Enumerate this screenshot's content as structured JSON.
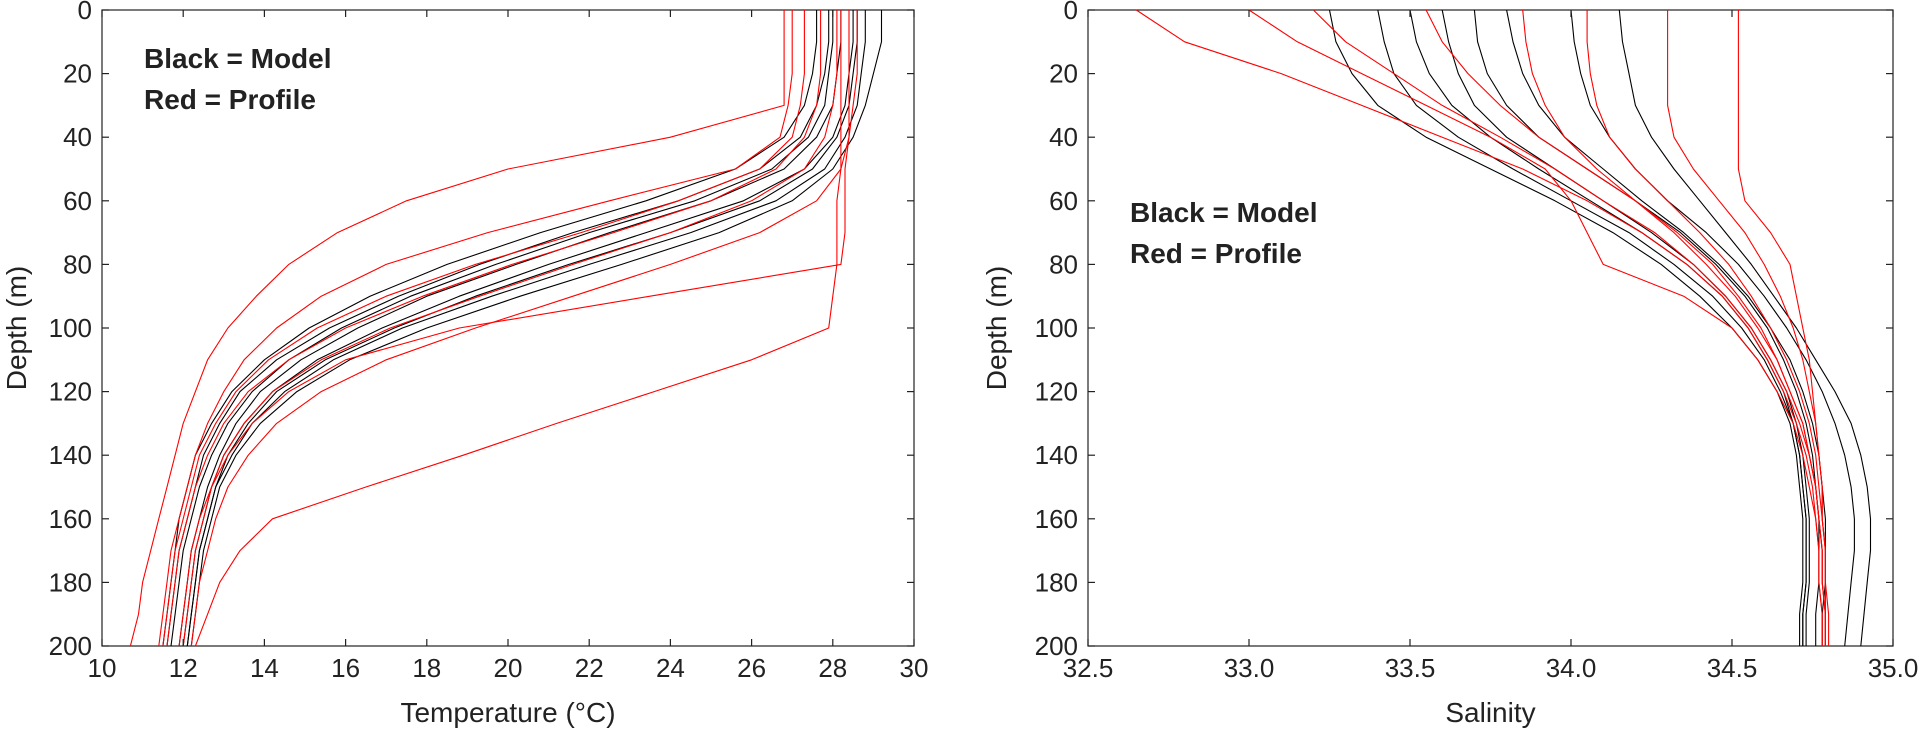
{
  "chart_data": [
    {
      "type": "line",
      "xlabel": "Temperature (°C)",
      "ylabel": "Depth (m)",
      "xlim": [
        10,
        30
      ],
      "ylim": [
        0,
        200
      ],
      "y_reversed": true,
      "xticks": [
        10,
        12,
        14,
        16,
        18,
        20,
        22,
        24,
        26,
        28,
        30
      ],
      "xtick_labels": [
        "10",
        "12",
        "14",
        "16",
        "18",
        "20",
        "22",
        "24",
        "26",
        "28",
        "30"
      ],
      "yticks": [
        0,
        20,
        40,
        60,
        80,
        100,
        120,
        140,
        160,
        180,
        200
      ],
      "ytick_labels": [
        "0",
        "20",
        "40",
        "60",
        "80",
        "100",
        "120",
        "140",
        "160",
        "180",
        "200"
      ],
      "annotations": [
        "Black = Model",
        "Red = Profile"
      ],
      "depth": [
        0,
        10,
        20,
        30,
        40,
        50,
        60,
        70,
        80,
        90,
        100,
        110,
        120,
        130,
        140,
        150,
        160,
        170,
        180,
        190,
        200
      ],
      "series": [
        {
          "color": "#000000",
          "values": [
            28.2,
            28.2,
            28.1,
            28.0,
            27.6,
            26.8,
            25.0,
            22.5,
            20.2,
            18.0,
            16.3,
            14.9,
            13.9,
            13.3,
            12.9,
            12.6,
            12.4,
            12.2,
            12.1,
            12.0,
            11.9
          ]
        },
        {
          "color": "#000000",
          "values": [
            28.5,
            28.5,
            28.4,
            28.3,
            28.0,
            27.3,
            25.8,
            23.4,
            21.0,
            18.8,
            16.9,
            15.3,
            14.2,
            13.5,
            13.0,
            12.7,
            12.5,
            12.3,
            12.2,
            12.1,
            12.0
          ]
        },
        {
          "color": "#000000",
          "values": [
            27.9,
            27.9,
            27.8,
            27.6,
            27.2,
            26.2,
            24.2,
            21.6,
            19.3,
            17.3,
            15.6,
            14.3,
            13.4,
            12.9,
            12.5,
            12.3,
            12.1,
            11.9,
            11.8,
            11.7,
            11.6
          ]
        },
        {
          "color": "#000000",
          "values": [
            28.8,
            28.8,
            28.7,
            28.6,
            28.3,
            27.8,
            26.6,
            24.5,
            22.0,
            19.6,
            17.4,
            15.7,
            14.5,
            13.7,
            13.2,
            12.8,
            12.6,
            12.4,
            12.3,
            12.2,
            12.1
          ]
        },
        {
          "color": "#000000",
          "values": [
            27.6,
            27.6,
            27.5,
            27.3,
            26.8,
            25.6,
            23.4,
            20.8,
            18.5,
            16.6,
            15.1,
            14.0,
            13.2,
            12.7,
            12.3,
            12.1,
            11.9,
            11.8,
            11.7,
            11.6,
            11.5
          ]
        },
        {
          "color": "#000000",
          "values": [
            29.2,
            29.2,
            29.0,
            28.8,
            28.5,
            28.0,
            27.0,
            25.2,
            22.8,
            20.3,
            18.0,
            16.1,
            14.8,
            13.9,
            13.3,
            12.9,
            12.7,
            12.5,
            12.4,
            12.3,
            12.2
          ]
        },
        {
          "color": "#000000",
          "values": [
            28.0,
            28.0,
            27.9,
            27.8,
            27.4,
            26.5,
            24.6,
            22.0,
            19.7,
            17.6,
            15.9,
            14.6,
            13.7,
            13.1,
            12.7,
            12.4,
            12.2,
            12.0,
            11.9,
            11.8,
            11.7
          ]
        },
        {
          "color": "#000000",
          "values": [
            28.6,
            28.6,
            28.5,
            28.4,
            28.1,
            27.5,
            26.2,
            24.0,
            21.5,
            19.2,
            17.2,
            15.5,
            14.3,
            13.6,
            13.1,
            12.8,
            12.6,
            12.4,
            12.3,
            12.2,
            12.1
          ]
        },
        {
          "color": "#FF0000",
          "values": [
            27.0,
            27.0,
            27.0,
            26.9,
            26.7,
            25.6,
            22.5,
            19.5,
            17.0,
            15.4,
            14.3,
            13.5,
            13.0,
            12.6,
            12.3,
            12.1,
            11.9,
            11.7,
            11.6,
            11.5,
            11.4
          ]
        },
        {
          "color": "#FF0000",
          "values": [
            28.4,
            28.4,
            28.4,
            28.4,
            28.4,
            28.3,
            28.3,
            28.3,
            28.2,
            23.5,
            18.8,
            16.0,
            14.6,
            13.7,
            13.1,
            12.7,
            12.4,
            12.2,
            12.1,
            12.0,
            11.9
          ]
        },
        {
          "color": "#FF0000",
          "values": [
            27.3,
            27.3,
            27.3,
            27.2,
            27.0,
            26.2,
            24.2,
            21.8,
            19.2,
            17.0,
            15.3,
            14.1,
            13.3,
            12.8,
            12.4,
            12.2,
            12.0,
            11.8,
            11.7,
            11.6,
            11.5
          ]
        },
        {
          "color": "#FF0000",
          "values": [
            28.1,
            28.1,
            28.1,
            28.0,
            27.8,
            27.3,
            26.0,
            24.0,
            21.6,
            19.3,
            17.1,
            15.4,
            14.2,
            13.5,
            13.0,
            12.7,
            12.5,
            12.3,
            12.2,
            12.1,
            12.0
          ]
        },
        {
          "color": "#FF0000",
          "values": [
            26.8,
            26.8,
            26.8,
            26.8,
            24.0,
            20.0,
            17.5,
            15.8,
            14.6,
            13.8,
            13.1,
            12.6,
            12.3,
            12.0,
            11.8,
            11.6,
            11.4,
            11.2,
            11.0,
            10.9,
            10.7
          ]
        },
        {
          "color": "#FF0000",
          "values": [
            28.6,
            28.6,
            28.6,
            28.5,
            28.4,
            28.2,
            27.6,
            26.2,
            24.0,
            21.6,
            19.2,
            17.0,
            15.4,
            14.3,
            13.6,
            13.1,
            12.8,
            12.6,
            12.4,
            12.3,
            12.2
          ]
        },
        {
          "color": "#FF0000",
          "values": [
            28.2,
            28.2,
            28.2,
            28.2,
            28.2,
            28.2,
            28.1,
            28.1,
            28.1,
            28.0,
            27.9,
            26.0,
            23.6,
            21.2,
            18.9,
            16.5,
            14.2,
            13.4,
            12.9,
            12.6,
            12.3
          ]
        },
        {
          "color": "#FF0000",
          "values": [
            27.7,
            27.7,
            27.7,
            27.6,
            27.3,
            26.6,
            25.0,
            22.6,
            20.1,
            17.9,
            16.0,
            14.6,
            13.6,
            13.0,
            12.6,
            12.3,
            12.1,
            11.9,
            11.8,
            11.7,
            11.6
          ]
        }
      ]
    },
    {
      "type": "line",
      "xlabel": "Salinity",
      "ylabel": "Depth (m)",
      "xlim": [
        32.5,
        35.0
      ],
      "ylim": [
        0,
        200
      ],
      "y_reversed": true,
      "xticks": [
        32.5,
        33.0,
        33.5,
        34.0,
        34.5,
        35.0
      ],
      "xtick_labels": [
        "32.5",
        "33.0",
        "33.5",
        "34.0",
        "34.5",
        "35.0"
      ],
      "yticks": [
        0,
        20,
        40,
        60,
        80,
        100,
        120,
        140,
        160,
        180,
        200
      ],
      "ytick_labels": [
        "0",
        "20",
        "40",
        "60",
        "80",
        "100",
        "120",
        "140",
        "160",
        "180",
        "200"
      ],
      "annotations": [
        "Black = Model",
        "Red = Profile"
      ],
      "depth": [
        0,
        10,
        20,
        30,
        40,
        50,
        60,
        70,
        80,
        90,
        100,
        110,
        120,
        130,
        140,
        150,
        160,
        170,
        180,
        190,
        200
      ],
      "series": [
        {
          "color": "#000000",
          "values": [
            33.6,
            33.62,
            33.65,
            33.7,
            33.8,
            33.95,
            34.1,
            34.25,
            34.38,
            34.48,
            34.56,
            34.62,
            34.67,
            34.7,
            34.72,
            34.73,
            34.74,
            34.74,
            34.74,
            34.73,
            34.73
          ]
        },
        {
          "color": "#000000",
          "values": [
            33.8,
            33.82,
            33.85,
            33.9,
            33.98,
            34.1,
            34.22,
            34.35,
            34.46,
            34.55,
            34.62,
            34.68,
            34.72,
            34.75,
            34.77,
            34.78,
            34.79,
            34.79,
            34.79,
            34.78,
            34.78
          ]
        },
        {
          "color": "#000000",
          "values": [
            33.4,
            33.42,
            33.45,
            33.52,
            33.65,
            33.82,
            34.0,
            34.18,
            34.32,
            34.44,
            34.53,
            34.6,
            34.65,
            34.69,
            34.71,
            34.72,
            34.73,
            34.73,
            34.73,
            34.72,
            34.72
          ]
        },
        {
          "color": "#000000",
          "values": [
            34.0,
            34.01,
            34.03,
            34.06,
            34.12,
            34.2,
            34.3,
            34.42,
            34.52,
            34.6,
            34.67,
            34.73,
            34.78,
            34.82,
            34.85,
            34.87,
            34.88,
            34.88,
            34.87,
            34.86,
            34.85
          ]
        },
        {
          "color": "#000000",
          "values": [
            33.25,
            33.27,
            33.32,
            33.4,
            33.55,
            33.75,
            33.95,
            34.13,
            34.28,
            34.4,
            34.5,
            34.58,
            34.64,
            34.68,
            34.7,
            34.71,
            34.72,
            34.72,
            34.72,
            34.71,
            34.71
          ]
        },
        {
          "color": "#000000",
          "values": [
            33.7,
            33.71,
            33.74,
            33.8,
            33.9,
            34.05,
            34.2,
            34.34,
            34.45,
            34.54,
            34.61,
            34.66,
            34.7,
            34.73,
            34.75,
            34.76,
            34.77,
            34.77,
            34.77,
            34.76,
            34.76
          ]
        },
        {
          "color": "#000000",
          "values": [
            34.15,
            34.16,
            34.18,
            34.2,
            34.25,
            34.32,
            34.4,
            34.48,
            34.56,
            34.63,
            34.7,
            34.76,
            34.82,
            34.87,
            34.9,
            34.92,
            34.93,
            34.93,
            34.92,
            34.91,
            34.9
          ]
        },
        {
          "color": "#000000",
          "values": [
            33.5,
            33.52,
            33.56,
            33.63,
            33.75,
            33.9,
            34.06,
            34.22,
            34.36,
            34.47,
            34.55,
            34.61,
            34.66,
            34.69,
            34.71,
            34.72,
            34.73,
            34.73,
            34.73,
            34.72,
            34.72
          ]
        },
        {
          "color": "#FF0000",
          "values": [
            32.65,
            32.8,
            33.1,
            33.35,
            33.6,
            33.85,
            34.05,
            34.22,
            34.36,
            34.47,
            34.55,
            34.61,
            34.66,
            34.7,
            34.73,
            34.75,
            34.76,
            34.77,
            34.77,
            34.78,
            34.78
          ]
        },
        {
          "color": "#FF0000",
          "values": [
            34.52,
            34.52,
            34.52,
            34.52,
            34.52,
            34.52,
            34.54,
            34.62,
            34.68,
            34.7,
            34.72,
            34.74,
            34.75,
            34.76,
            34.77,
            34.78,
            34.78,
            34.79,
            34.79,
            34.79,
            34.79
          ]
        },
        {
          "color": "#FF0000",
          "values": [
            33.2,
            33.3,
            33.45,
            33.6,
            33.78,
            33.95,
            34.1,
            34.26,
            34.38,
            34.48,
            34.56,
            34.62,
            34.67,
            34.71,
            34.74,
            34.76,
            34.77,
            34.78,
            34.78,
            34.79,
            34.79
          ]
        },
        {
          "color": "#FF0000",
          "values": [
            33.55,
            33.6,
            33.68,
            33.78,
            33.9,
            34.05,
            34.2,
            34.33,
            34.44,
            34.52,
            34.59,
            34.64,
            34.68,
            34.72,
            34.74,
            34.76,
            34.77,
            34.78,
            34.78,
            34.79,
            34.79
          ]
        },
        {
          "color": "#FF0000",
          "values": [
            34.3,
            34.3,
            34.3,
            34.3,
            34.32,
            34.38,
            34.46,
            34.54,
            34.6,
            34.65,
            34.69,
            34.72,
            34.74,
            34.76,
            34.77,
            34.78,
            34.78,
            34.79,
            34.79,
            34.79,
            34.79
          ]
        },
        {
          "color": "#FF0000",
          "values": [
            33.0,
            33.15,
            33.35,
            33.55,
            33.75,
            33.92,
            34.0,
            34.05,
            34.1,
            34.35,
            34.5,
            34.58,
            34.64,
            34.69,
            34.72,
            34.74,
            34.76,
            34.77,
            34.77,
            34.78,
            34.78
          ]
        },
        {
          "color": "#FF0000",
          "values": [
            33.85,
            33.86,
            33.88,
            33.92,
            33.98,
            34.08,
            34.2,
            34.32,
            34.42,
            34.51,
            34.58,
            34.64,
            34.68,
            34.72,
            34.74,
            34.76,
            34.77,
            34.78,
            34.78,
            34.79,
            34.79
          ]
        },
        {
          "color": "#FF0000",
          "values": [
            34.05,
            34.05,
            34.06,
            34.08,
            34.12,
            34.2,
            34.3,
            34.4,
            34.49,
            34.56,
            34.62,
            34.67,
            34.71,
            34.74,
            34.76,
            34.77,
            34.78,
            34.79,
            34.79,
            34.8,
            34.8
          ]
        }
      ]
    }
  ]
}
